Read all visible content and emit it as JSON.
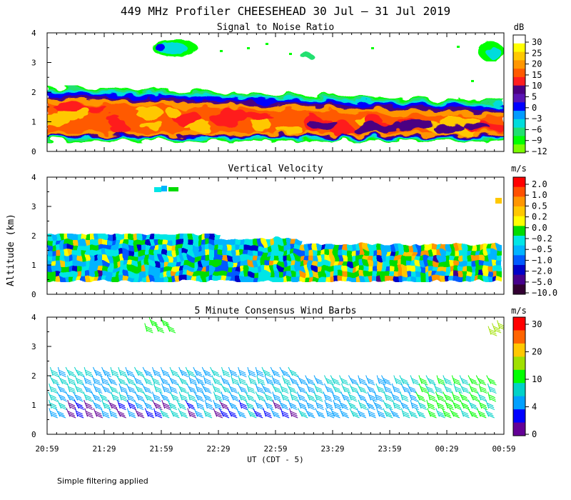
{
  "title": "449 MHz Profiler CHEESEHEAD 30 Jul – 31 Jul 2019",
  "ylabel": "Altitude (km)",
  "xlabel": "UT  (CDT - 5)",
  "footnote": "Simple filtering applied",
  "chart_data": [
    {
      "type": "heatmap",
      "name": "snr",
      "title": "Signal to Noise Ratio",
      "units": "dB",
      "ylim": [
        0,
        4
      ],
      "yticks": [
        "0",
        "1",
        "2",
        "3",
        "4"
      ],
      "xticks": [
        "20:59",
        "21:29",
        "21:59",
        "22:29",
        "22:59",
        "23:29",
        "23:59",
        "00:29",
        "00:59"
      ],
      "colorbar": {
        "labels": [
          "30",
          "25",
          "20",
          "15",
          "10",
          "5",
          "0",
          "−3",
          "−6",
          "−9",
          "−12"
        ],
        "colors": [
          "#ffffff",
          "#ffff00",
          "#ffc800",
          "#ff9600",
          "#ff5a00",
          "#ff1e1e",
          "#4b0082",
          "#5a14b4",
          "#0000ff",
          "#009bff",
          "#00dcdc",
          "#20e070",
          "#00ff00",
          "#7cfc00"
        ]
      },
      "layer_summary": {
        "bottom_km": 0.45,
        "top_km_start": 2.2,
        "top_km_end": 1.7,
        "peak_dB": 15
      }
    },
    {
      "type": "heatmap",
      "name": "vertical_velocity",
      "title": "Vertical Velocity",
      "units": "m/s",
      "ylim": [
        0,
        4
      ],
      "yticks": [
        "0",
        "1",
        "2",
        "3",
        "4"
      ],
      "xticks": [
        "20:59",
        "21:29",
        "21:59",
        "22:29",
        "22:59",
        "23:29",
        "23:59",
        "00:29",
        "00:59"
      ],
      "colorbar": {
        "labels": [
          "2.0",
          "1.0",
          "0.5",
          "0.2",
          "0.0",
          "−0.2",
          "−0.5",
          "−1.0",
          "−2.0",
          "−5.0",
          "−10.0"
        ],
        "colors": [
          "#ff0000",
          "#ff5000",
          "#ff9600",
          "#ffc800",
          "#ffff00",
          "#00dc00",
          "#00e6e6",
          "#00b4ff",
          "#005aff",
          "#0000c8",
          "#46008c",
          "#320032"
        ]
      }
    },
    {
      "type": "scatter",
      "name": "wind_barbs",
      "title": "5 Minute Consensus Wind Barbs",
      "units": "m/s",
      "ylim": [
        0,
        4
      ],
      "yticks": [
        "0",
        "1",
        "2",
        "3",
        "4"
      ],
      "xticks": [
        "20:59",
        "21:29",
        "21:59",
        "22:29",
        "22:59",
        "23:29",
        "23:59",
        "00:29",
        "00:59"
      ],
      "colorbar": {
        "labels": [
          "30",
          "20",
          "10",
          "4",
          "0"
        ],
        "colors": [
          "#ff0000",
          "#ff6400",
          "#ffc800",
          "#a0e000",
          "#00ff00",
          "#00d2c8",
          "#00a0ff",
          "#0000ff",
          "#640096"
        ]
      }
    }
  ]
}
